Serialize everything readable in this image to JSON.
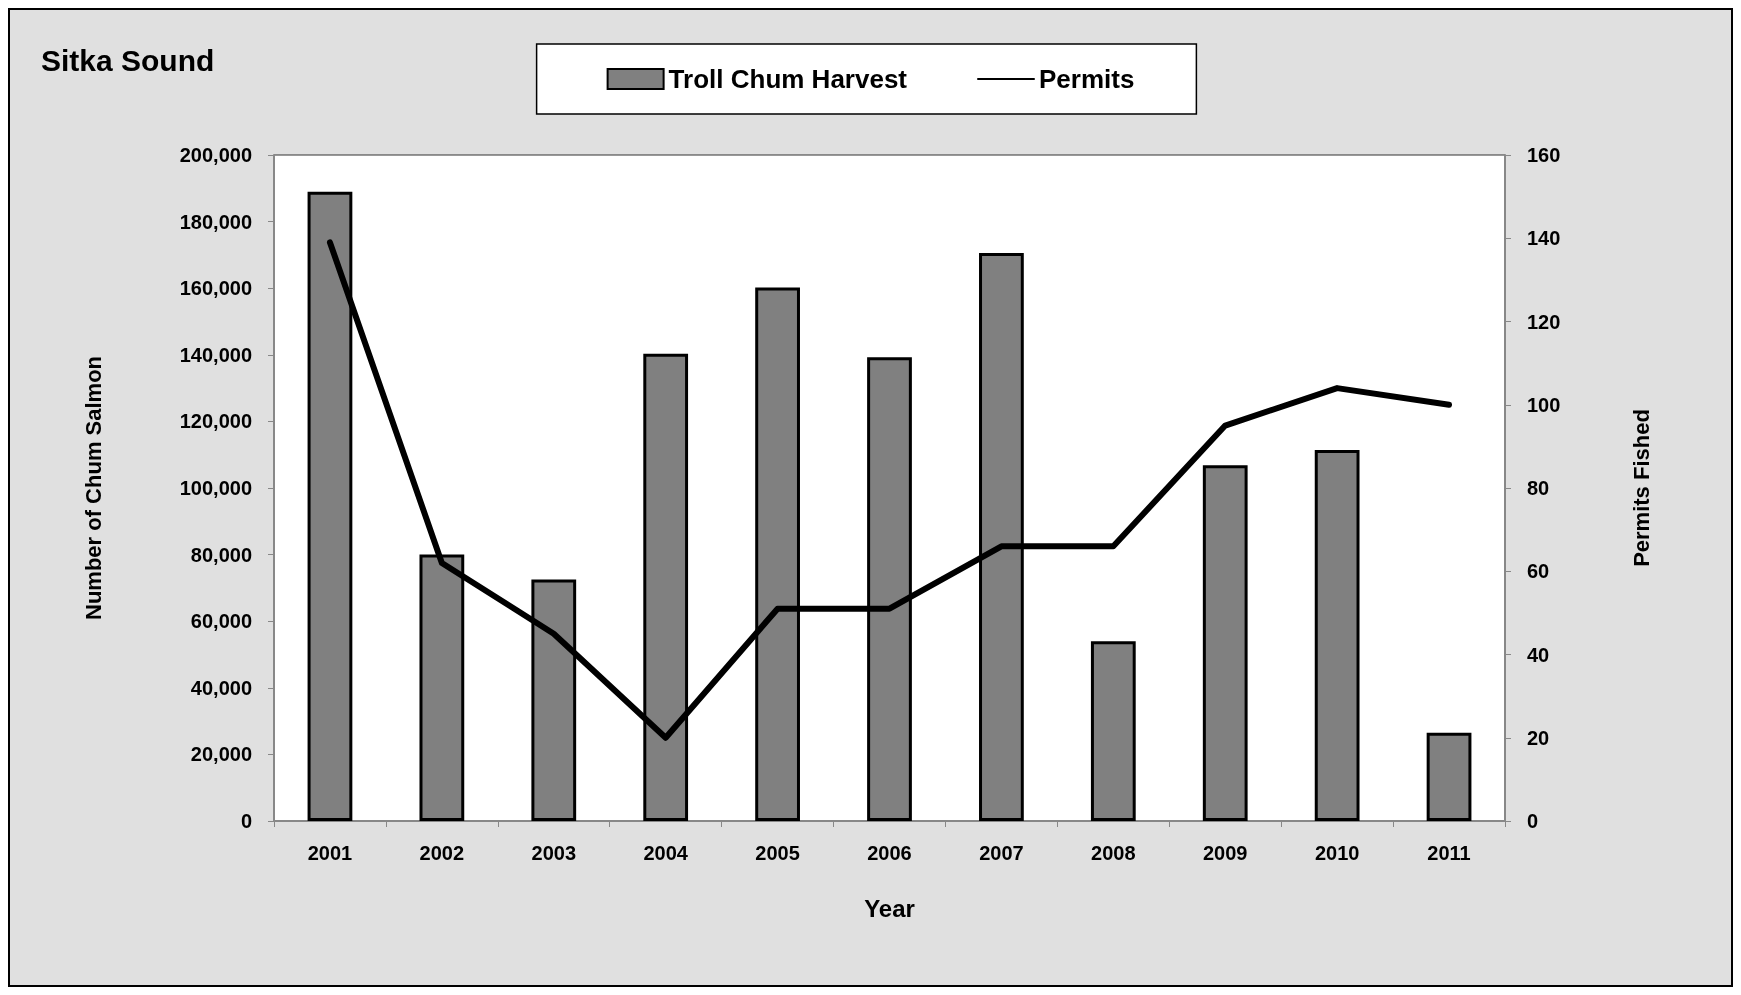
{
  "chart_data": {
    "type": "bar",
    "title": "Sitka Sound",
    "xlabel": "Year",
    "ylabel": "Number of Chum Salmon",
    "y2label": "Permits Fished",
    "categories": [
      "2001",
      "2002",
      "2003",
      "2004",
      "2005",
      "2006",
      "2007",
      "2008",
      "2009",
      "2010",
      "2011"
    ],
    "series": [
      {
        "name": "Troll Chum Harvest",
        "color": "#808080",
        "values": [
          189000,
          80000,
          72500,
          140300,
          160200,
          139300,
          170600,
          54000,
          106800,
          111400,
          26500
        ]
      },
      {
        "name": "Permits",
        "type": "line",
        "axis": "y2",
        "color": "#000000",
        "values": [
          139,
          62,
          45,
          20,
          51,
          51,
          66,
          66,
          95,
          104,
          100
        ]
      }
    ],
    "ylim": [
      0,
      200000
    ],
    "yticks": [
      0,
      {
        "value": 20000,
        "label": "20,000"
      },
      {
        "value": 40000,
        "label": "40,000"
      },
      {
        "value": 60000,
        "label": "60,000"
      },
      {
        "value": 80000,
        "label": "80,000"
      },
      {
        "value": 100000,
        "label": "100,000"
      },
      {
        "value": 120000,
        "label": "120,000"
      },
      {
        "value": 140000,
        "label": "140,000"
      },
      {
        "value": 160000,
        "label": "160,000"
      },
      {
        "value": 180000,
        "label": "180,000"
      },
      {
        "value": 200000,
        "label": "200,000"
      }
    ],
    "y2lim": [
      0,
      160
    ],
    "y2ticks": [
      0,
      20,
      40,
      60,
      80,
      100,
      120,
      140,
      160
    ],
    "grid": false,
    "legend": "top",
    "marker": "none",
    "line_style": "solid"
  }
}
